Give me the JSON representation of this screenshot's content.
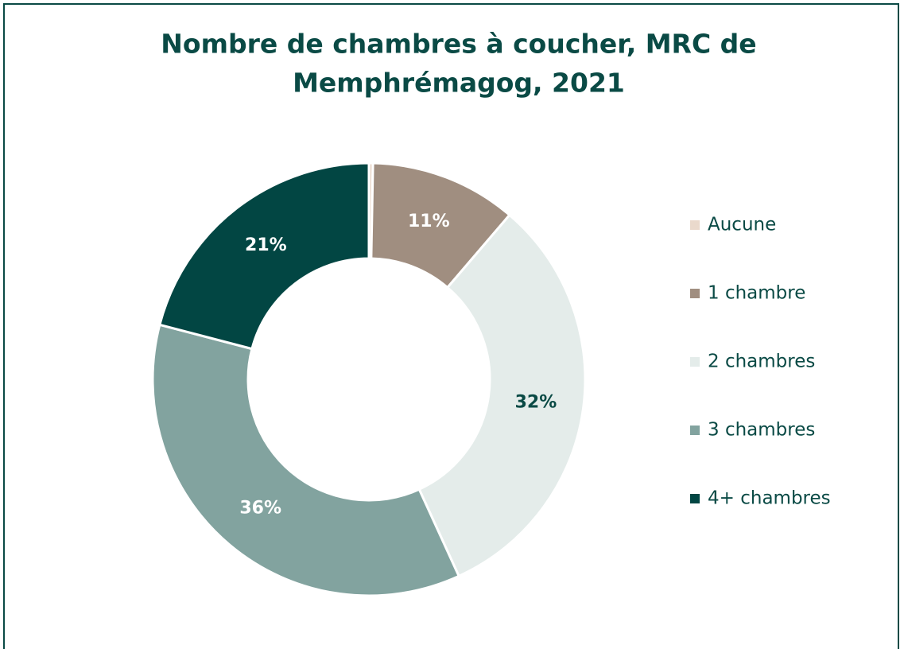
{
  "chart_data": {
    "type": "donut",
    "title": [
      "Nombre de chambres à coucher, MRC de",
      "Memphrémagog, 2021"
    ],
    "categories": [
      "Aucune",
      "1 chambre",
      "2 chambres",
      "3 chambres",
      "4+ chambres"
    ],
    "values": [
      0.3,
      11,
      32,
      36,
      21
    ],
    "value_labels": [
      null,
      "11%",
      "32%",
      "36%",
      "21%"
    ],
    "colors": [
      "#ead9cc",
      "#a08e80",
      "#e4ecea",
      "#82a39f",
      "#024643"
    ],
    "legend": "right"
  }
}
